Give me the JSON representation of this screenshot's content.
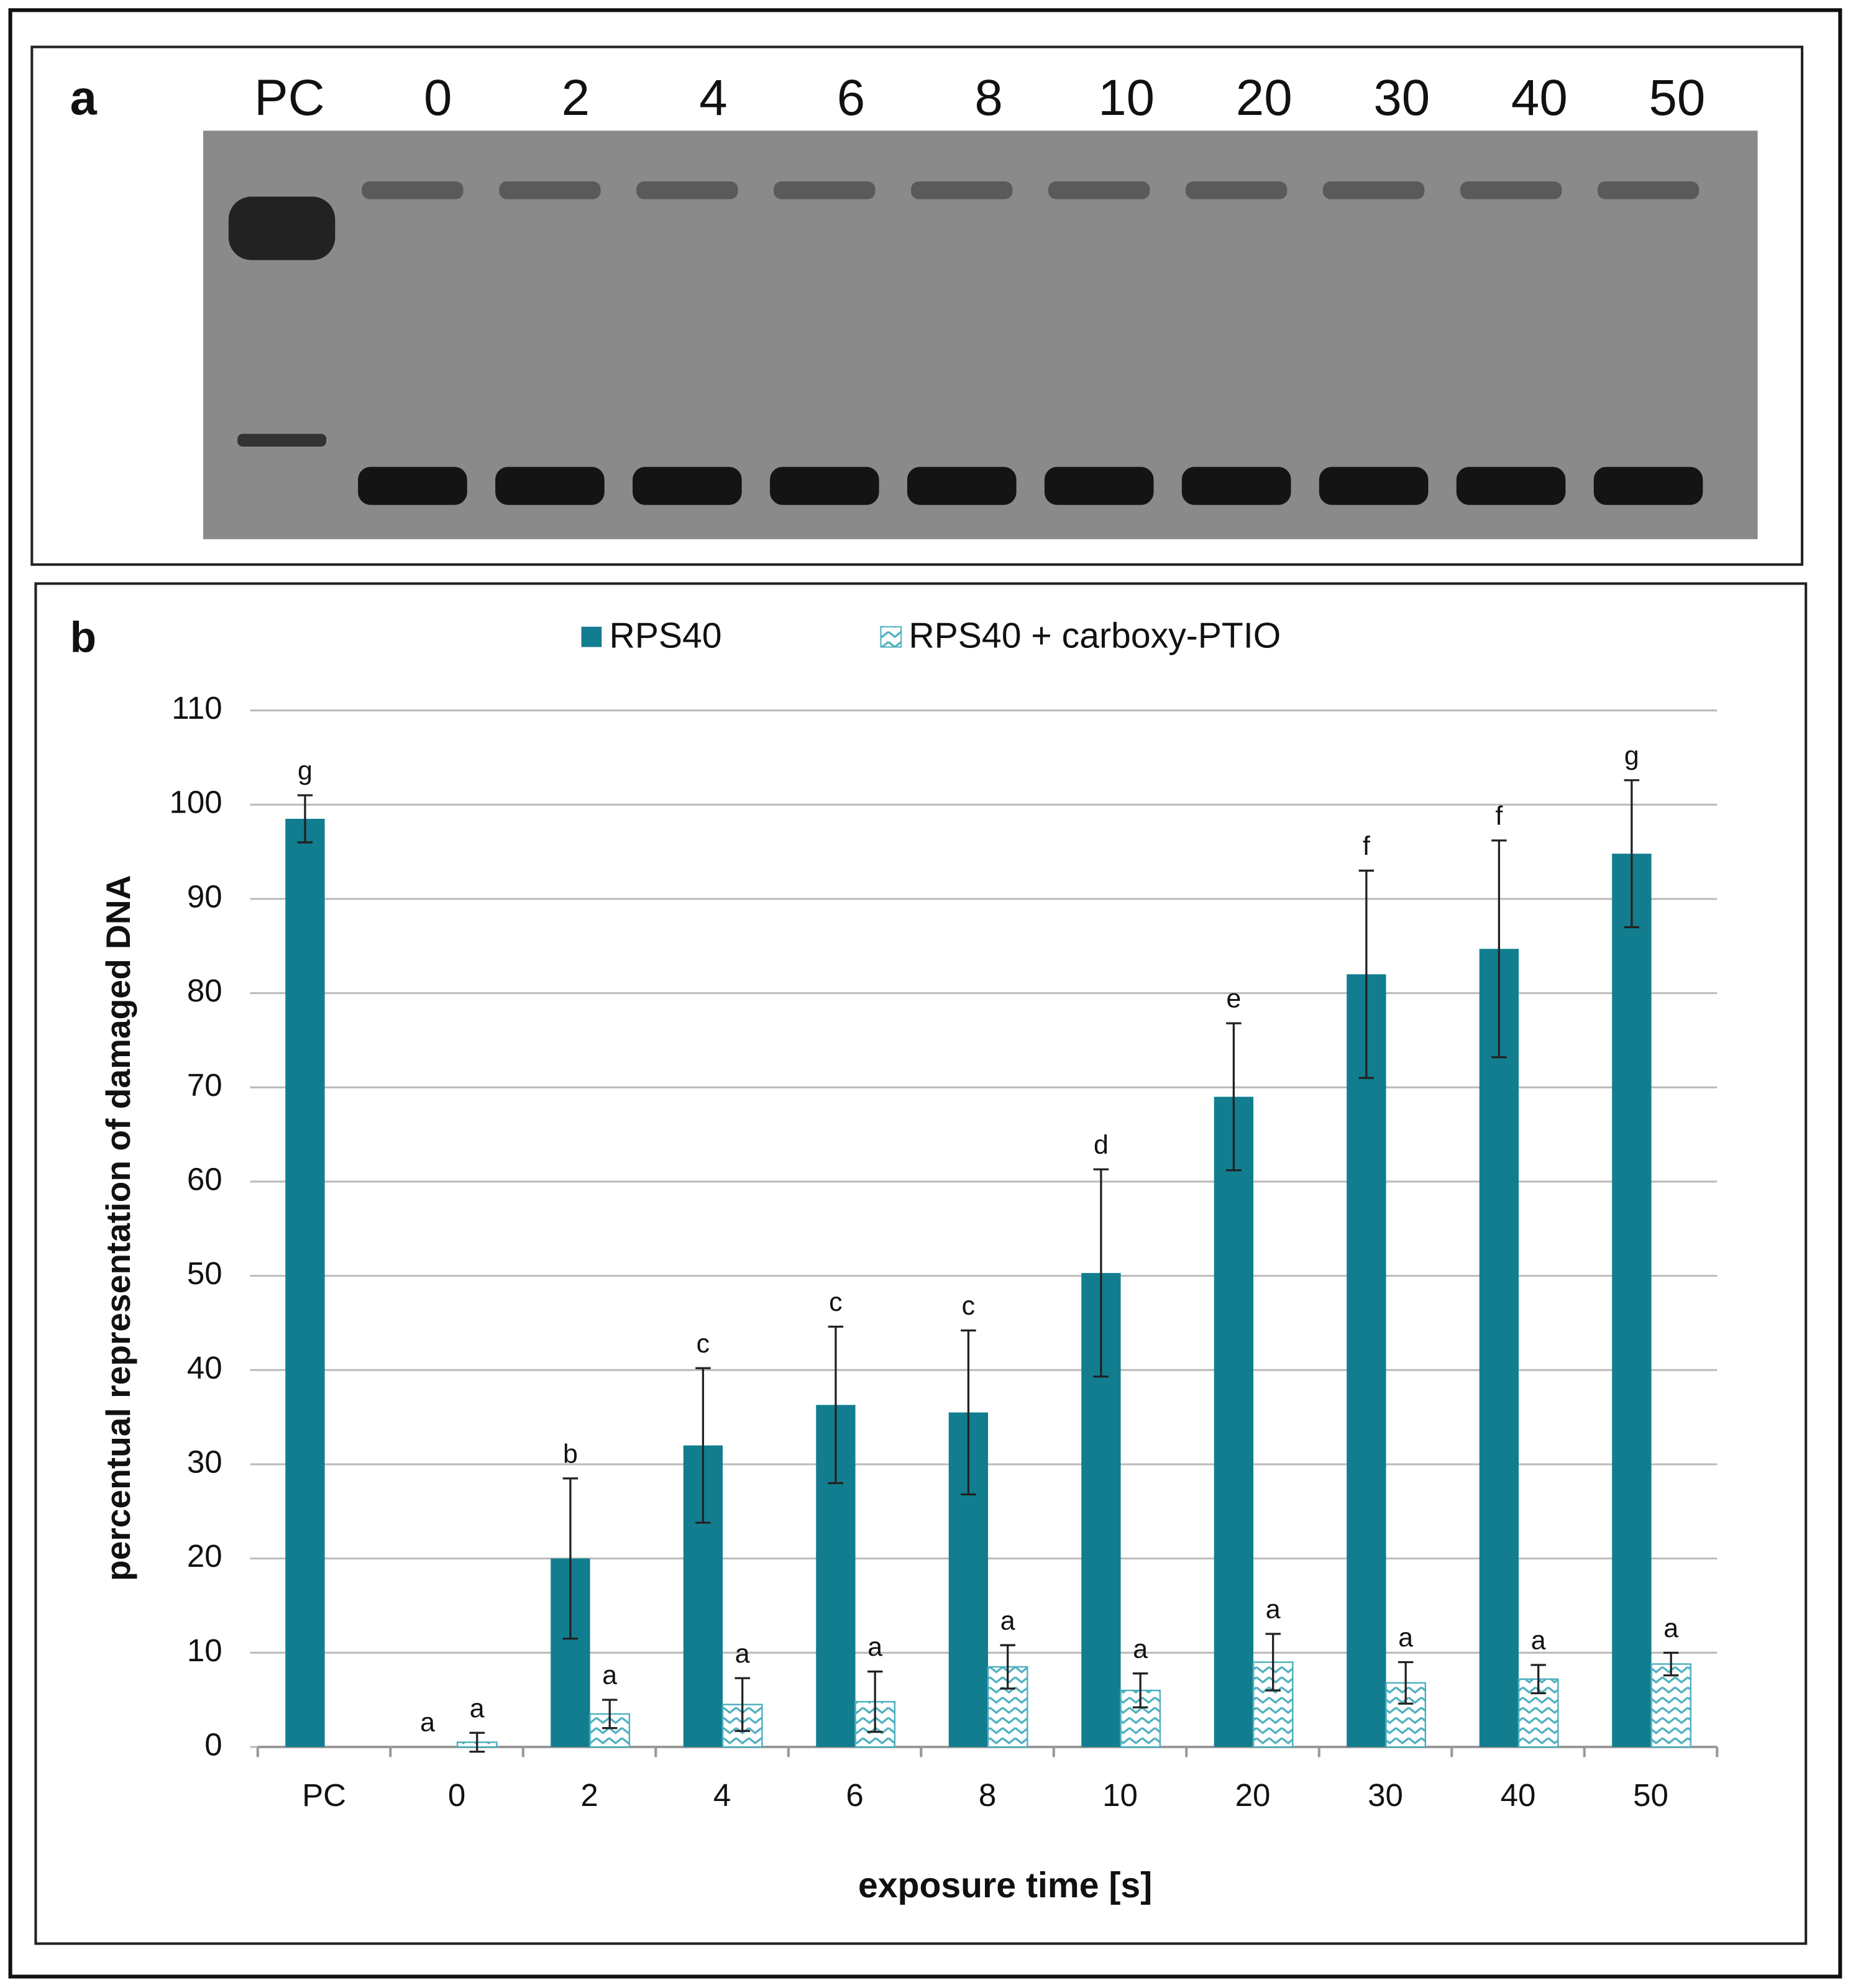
{
  "panel_a": {
    "panel_label": "a",
    "lanes": [
      "PC",
      "0",
      "2",
      "4",
      "6",
      "8",
      "10",
      "20",
      "30",
      "40",
      "50"
    ]
  },
  "chart_data": {
    "type": "bar",
    "panel_label": "b",
    "x_label": "exposure time [s]",
    "y_label": "percentual representation of damaged DNA",
    "categories": [
      "PC",
      "0",
      "2",
      "4",
      "6",
      "8",
      "10",
      "20",
      "30",
      "40",
      "50"
    ],
    "series": [
      {
        "name": "RPS40",
        "color": "#127d8f",
        "pattern": "solid",
        "values": [
          98.5,
          0,
          20,
          32,
          36.3,
          35.5,
          50.3,
          69,
          82,
          84.7,
          94.8
        ],
        "errors": [
          2.5,
          null,
          8.5,
          8.2,
          8.3,
          8.7,
          11,
          7.8,
          11,
          11.5,
          7.8
        ],
        "letters": [
          "g",
          "a",
          "b",
          "c",
          "c",
          "c",
          "d",
          "e",
          "f",
          "f",
          "g"
        ]
      },
      {
        "name": "RPS40 + carboxy-PTIO",
        "color": "#4fb0bf",
        "pattern": "zigzag",
        "values": [
          null,
          0.5,
          3.5,
          4.5,
          4.8,
          8.5,
          6,
          9,
          6.8,
          7.2,
          8.8
        ],
        "errors": [
          null,
          1,
          1.5,
          2.8,
          3.2,
          2.3,
          1.8,
          3,
          2.2,
          1.5,
          1.2
        ],
        "letters": [
          null,
          "a",
          "a",
          "a",
          "a",
          "a",
          "a",
          "a",
          "a",
          "a",
          "a"
        ]
      }
    ],
    "ylim": [
      0,
      110
    ],
    "yticks": [
      0,
      10,
      20,
      30,
      40,
      50,
      60,
      70,
      80,
      90,
      100,
      110
    ],
    "grid": true,
    "legend": "top"
  }
}
